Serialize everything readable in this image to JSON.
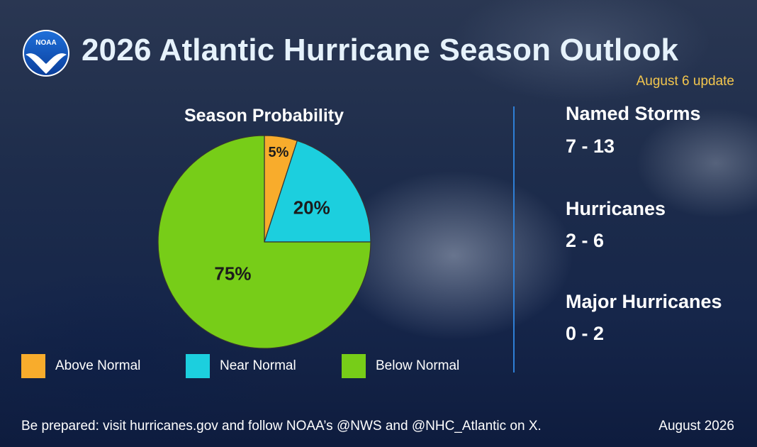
{
  "header": {
    "logo_text": "NOAA",
    "title": "2026 Atlantic Hurricane Season Outlook",
    "update": "August 6 update"
  },
  "chart_data": {
    "type": "pie",
    "title": "Season Probability",
    "slices": [
      {
        "name": "Above Normal",
        "value": 5,
        "label": "5%",
        "color": "#f8ac2c"
      },
      {
        "name": "Near Normal",
        "value": 20,
        "label": "20%",
        "color": "#1ccfde"
      },
      {
        "name": "Below Normal",
        "value": 75,
        "label": "75%",
        "color": "#77cd18"
      }
    ],
    "legend": {
      "placement": "bottom"
    }
  },
  "stats": [
    {
      "label": "Named Storms",
      "value": "7 - 13"
    },
    {
      "label": "Hurricanes",
      "value": "2 - 6"
    },
    {
      "label": "Major Hurricanes",
      "value": "0 - 2"
    }
  ],
  "footer": {
    "message": "Be prepared: visit hurricanes.gov and follow NOAA’s @NWS and @NHC_Atlantic on X.",
    "date": "August 2026"
  },
  "colors": {
    "title": "#e6f2fb",
    "accent": "#f3c64d",
    "divider": "#2e7fd6"
  }
}
